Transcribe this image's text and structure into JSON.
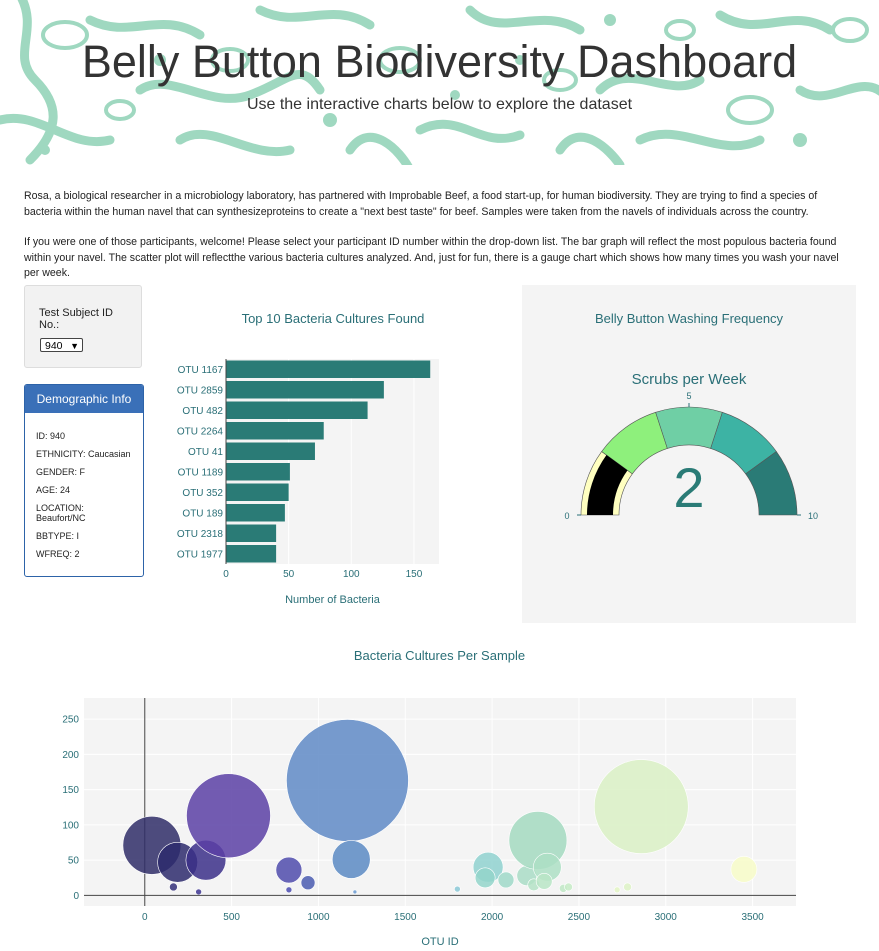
{
  "header": {
    "title": "Belly Button Biodiversity Dashboard",
    "subtitle": "Use the interactive charts below to explore the dataset"
  },
  "intro": {
    "paragraph1": "Rosa, a biological researcher in a microbiology laboratory, has partnered with Improbable Beef, a food start-up, for human biodiversity. They are trying to find a species of bacteria within the human navel that can synthesizeproteins to create a \"next best taste\" for beef. Samples were taken from the navels of individuals across the country.",
    "paragraph2": "If you were one of those participants, welcome! Please select your participant ID number within the drop-down list. The bar graph will reflect the most populous bacteria found within your navel. The scatter plot will reflectthe various bacteria cultures analyzed. And, just for fun, there is a gauge chart which shows how many times you wash your navel per week."
  },
  "selector": {
    "label": "Test Subject ID No.:",
    "selected": "940",
    "caret_icon": "chevron-down-icon"
  },
  "demographics": {
    "title": "Demographic Info",
    "rows": [
      "ID: 940",
      "ETHNICITY: Caucasian",
      "GENDER: F",
      "AGE: 24",
      "LOCATION: Beaufort/NC",
      "BBTYPE: I",
      "WFREQ: 2"
    ]
  },
  "colors": {
    "teal": "#2a7b76",
    "title_teal": "#2a6f77",
    "header_pattern": "#9fd8c0",
    "demo_header": "#3a70b8"
  },
  "chart_data": [
    {
      "type": "bar",
      "orientation": "horizontal",
      "title": "Top 10 Bacteria Cultures Found",
      "xlabel": "Number of Bacteria",
      "categories": [
        "OTU 1167",
        "OTU 2859",
        "OTU 482",
        "OTU 2264",
        "OTU 41",
        "OTU 1189",
        "OTU 352",
        "OTU 189",
        "OTU 2318",
        "OTU 1977"
      ],
      "values": [
        163,
        126,
        113,
        78,
        71,
        51,
        50,
        47,
        40,
        40
      ],
      "xlim": [
        0,
        170
      ],
      "xticks": [
        0,
        50,
        100,
        150
      ],
      "color": "#2a7b76"
    },
    {
      "type": "gauge",
      "title": "Belly Button Washing Frequency",
      "subtitle": "Scrubs per Week",
      "value": 2,
      "range": [
        0,
        10
      ],
      "tick_labels": [
        "0",
        "5",
        "10"
      ],
      "bands": [
        {
          "from": 0,
          "to": 2,
          "color": "#ffffc0"
        },
        {
          "from": 2,
          "to": 4,
          "color": "#8ef07c"
        },
        {
          "from": 4,
          "to": 6,
          "color": "#6fcfa5"
        },
        {
          "from": 6,
          "to": 8,
          "color": "#3db3a4"
        },
        {
          "from": 8,
          "to": 10,
          "color": "#2a7b76"
        }
      ],
      "bar_color": "#000000"
    },
    {
      "type": "scatter",
      "title": "Bacteria Cultures Per Sample",
      "xlabel": "OTU ID",
      "xlim": [
        -350,
        3750
      ],
      "ylim": [
        -15,
        280
      ],
      "xticks": [
        0,
        500,
        1000,
        1500,
        2000,
        2500,
        3000,
        3500
      ],
      "yticks": [
        0,
        50,
        100,
        150,
        200,
        250
      ],
      "points": [
        {
          "x": 41,
          "y": 71,
          "r": 29,
          "c": "#2f2d67"
        },
        {
          "x": 189,
          "y": 47,
          "r": 20,
          "c": "#2d2a6c"
        },
        {
          "x": 352,
          "y": 50,
          "r": 20,
          "c": "#3b2f88"
        },
        {
          "x": 482,
          "y": 113,
          "r": 42,
          "c": "#5a3fa5"
        },
        {
          "x": 165,
          "y": 12,
          "r": 4,
          "c": "#35307a"
        },
        {
          "x": 310,
          "y": 5,
          "r": 3,
          "c": "#3d3590"
        },
        {
          "x": 830,
          "y": 36,
          "r": 13,
          "c": "#4f4bab"
        },
        {
          "x": 940,
          "y": 18,
          "r": 7,
          "c": "#4a5cb0"
        },
        {
          "x": 830,
          "y": 8,
          "r": 3,
          "c": "#4a4bb0"
        },
        {
          "x": 1167,
          "y": 163,
          "r": 61,
          "c": "#5f8ac6"
        },
        {
          "x": 1189,
          "y": 51,
          "r": 19,
          "c": "#5b89c3"
        },
        {
          "x": 1210,
          "y": 5,
          "r": 2,
          "c": "#6a9ad0"
        },
        {
          "x": 1800,
          "y": 9,
          "r": 3,
          "c": "#8bc8d6"
        },
        {
          "x": 1977,
          "y": 40,
          "r": 15,
          "c": "#8fd1cf"
        },
        {
          "x": 1960,
          "y": 25,
          "r": 10,
          "c": "#93d5ca"
        },
        {
          "x": 2080,
          "y": 22,
          "r": 8,
          "c": "#9fd8c8"
        },
        {
          "x": 2200,
          "y": 28,
          "r": 10,
          "c": "#a9dcc6"
        },
        {
          "x": 2264,
          "y": 78,
          "r": 29,
          "c": "#a3d9bf"
        },
        {
          "x": 2318,
          "y": 40,
          "r": 14,
          "c": "#addfc4"
        },
        {
          "x": 2240,
          "y": 15,
          "r": 6,
          "c": "#b4e2c5"
        },
        {
          "x": 2300,
          "y": 20,
          "r": 8,
          "c": "#b9e5c6"
        },
        {
          "x": 2410,
          "y": 10,
          "r": 4,
          "c": "#c0e8c6"
        },
        {
          "x": 2859,
          "y": 126,
          "r": 47,
          "c": "#d9f0c4"
        },
        {
          "x": 2780,
          "y": 12,
          "r": 4,
          "c": "#ddf2c6"
        },
        {
          "x": 2720,
          "y": 8,
          "r": 3,
          "c": "#e3f4c4"
        },
        {
          "x": 3450,
          "y": 37,
          "r": 13,
          "c": "#f7fbc8"
        },
        {
          "x": 2440,
          "y": 12,
          "r": 4,
          "c": "#c5ebc5"
        }
      ]
    }
  ]
}
